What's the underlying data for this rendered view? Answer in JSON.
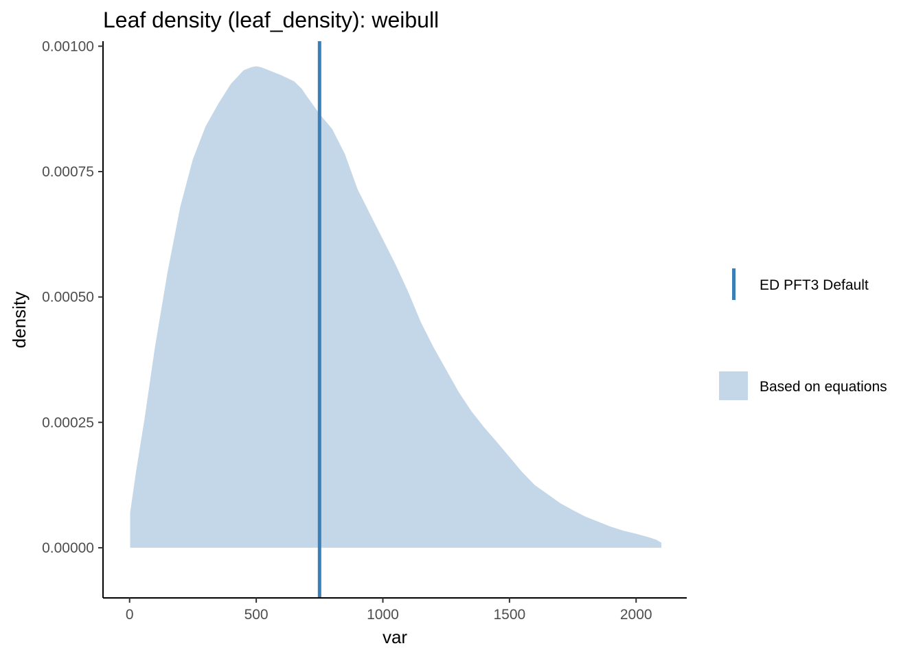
{
  "chart_data": {
    "type": "area",
    "title": "Leaf density (leaf_density): weibull",
    "xlabel": "var",
    "ylabel": "density",
    "xlim": [
      -105,
      2200
    ],
    "ylim": [
      -0.0001,
      0.00101
    ],
    "x_ticks": [
      0,
      500,
      1000,
      1500,
      2000
    ],
    "x_tick_labels": [
      "0",
      "500",
      "1000",
      "1500",
      "2000"
    ],
    "y_ticks": [
      0,
      0.00025,
      0.0005,
      0.00075,
      0.001
    ],
    "y_tick_labels": [
      "0.00000",
      "0.00025",
      "0.00050",
      "0.00075",
      "0.00100"
    ],
    "grid": false,
    "legend_position": "right",
    "series": [
      {
        "name": "Based on equations",
        "kind": "density-area",
        "color": "#c3d7e8",
        "x": [
          2,
          25,
          60,
          100,
          150,
          200,
          250,
          300,
          350,
          400,
          450,
          480,
          500,
          520,
          550,
          600,
          650,
          680,
          700,
          750,
          800,
          850,
          900,
          950,
          1000,
          1050,
          1100,
          1150,
          1200,
          1250,
          1300,
          1350,
          1400,
          1450,
          1500,
          1550,
          1600,
          1650,
          1700,
          1750,
          1800,
          1850,
          1900,
          1950,
          2000,
          2050,
          2080,
          2100
        ],
        "y": [
          7e-05,
          0.00015,
          0.00026,
          0.0004,
          0.00055,
          0.00068,
          0.000775,
          0.00084,
          0.000885,
          0.000925,
          0.000952,
          0.000958,
          0.00096,
          0.000958,
          0.000952,
          0.000942,
          0.00093,
          0.000915,
          0.0009,
          0.000865,
          0.000835,
          0.000785,
          0.000715,
          0.000665,
          0.000615,
          0.000565,
          0.00051,
          0.00045,
          0.0004,
          0.000355,
          0.00031,
          0.000272,
          0.00024,
          0.000211,
          0.000181,
          0.000151,
          0.000125,
          0.000107,
          8.9e-05,
          7.5e-05,
          6.2e-05,
          5.2e-05,
          4.2e-05,
          3.4e-05,
          2.8e-05,
          2.1e-05,
          1.6e-05,
          1e-05
        ]
      },
      {
        "name": "ED PFT3 Default",
        "kind": "vline",
        "color": "#3a7fb8",
        "x_value": 750
      }
    ]
  }
}
